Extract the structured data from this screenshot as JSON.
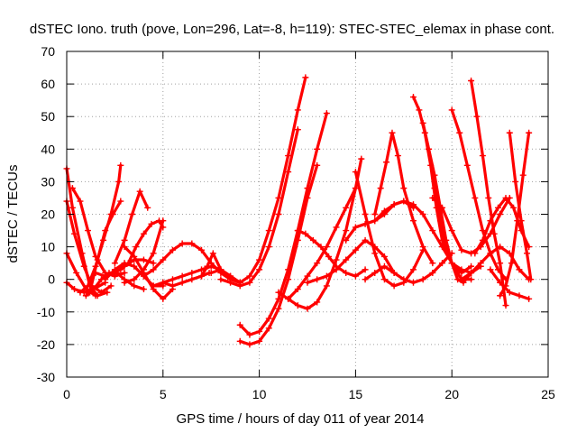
{
  "chart_data": {
    "type": "scatter",
    "title": "dSTEC Iono. truth (pove, Lon=296, Lat=-8, h=119): STEC-STEC_elemax in phase cont.",
    "xlabel": "GPS time / hours of day 011 of year 2014",
    "ylabel": "dSTEC  / TECUs",
    "xlim": [
      0,
      25
    ],
    "ylim": [
      -30,
      70
    ],
    "xticks": [
      "0",
      "5",
      "10",
      "15",
      "20",
      "25"
    ],
    "yticks": [
      "-30",
      "-20",
      "-10",
      "0",
      "10",
      "20",
      "30",
      "40",
      "50",
      "60",
      "70"
    ],
    "grid": true,
    "marker": "+",
    "color": "#ff0000",
    "series": [
      {
        "x": [
          0.0,
          0.3,
          0.8,
          1.2,
          1.6,
          2.1
        ],
        "y": [
          34,
          22,
          8,
          -2,
          -5,
          -4
        ]
      },
      {
        "x": [
          0.0,
          0.4,
          0.9,
          1.3,
          1.8,
          2.3
        ],
        "y": [
          24,
          14,
          4,
          -2,
          -4,
          -2
        ]
      },
      {
        "x": [
          0.0,
          0.5,
          1.0,
          1.5
        ],
        "y": [
          8,
          2,
          -3,
          -5
        ]
      },
      {
        "x": [
          0.0,
          0.4,
          0.9,
          1.4,
          2.0
        ],
        "y": [
          -1,
          -3,
          -4,
          -3,
          -1
        ]
      },
      {
        "x": [
          0.3,
          0.7,
          1.1,
          1.5,
          2.0,
          2.5,
          3.0
        ],
        "y": [
          28,
          24,
          15,
          7,
          2,
          1,
          2
        ]
      },
      {
        "x": [
          0.7,
          1.1,
          1.5,
          1.9,
          2.3,
          2.7,
          2.8
        ],
        "y": [
          -4,
          -2,
          4,
          12,
          20,
          30,
          35
        ]
      },
      {
        "x": [
          1.0,
          1.4,
          1.8,
          2.2,
          2.6,
          3.0,
          3.5,
          4.0
        ],
        "y": [
          -5,
          -3,
          0,
          2,
          2,
          0,
          -2,
          -3
        ]
      },
      {
        "x": [
          1.2,
          1.6,
          2.0,
          2.4,
          2.8
        ],
        "y": [
          -4,
          6,
          15,
          20,
          24
        ]
      },
      {
        "x": [
          1.5,
          2.0,
          2.5,
          3.0,
          3.5,
          4.0,
          4.5
        ],
        "y": [
          2,
          1,
          2,
          4,
          6,
          6,
          5
        ]
      },
      {
        "x": [
          2.0,
          2.5,
          3.0,
          3.5,
          4.0,
          4.5,
          5.0
        ],
        "y": [
          0,
          3,
          5,
          4,
          1,
          -2,
          -2
        ]
      },
      {
        "x": [
          2.5,
          3.0,
          3.4,
          3.8,
          4.2
        ],
        "y": [
          5,
          12,
          20,
          27,
          22
        ]
      },
      {
        "x": [
          2.8,
          3.2,
          3.6,
          4.0,
          4.4,
          4.8,
          5.0
        ],
        "y": [
          3,
          5,
          10,
          14,
          17,
          18,
          16
        ]
      },
      {
        "x": [
          3.0,
          3.5,
          4.0,
          4.5,
          5.0,
          5.5
        ],
        "y": [
          10,
          7,
          2,
          -3,
          -6,
          -3
        ]
      },
      {
        "x": [
          3.0,
          3.5,
          4.0,
          4.5,
          5.0
        ],
        "y": [
          -1,
          0,
          3,
          8,
          18
        ]
      },
      {
        "x": [
          4.0,
          4.5,
          5.0,
          5.5,
          6.0,
          6.5,
          7.0,
          7.5,
          8.0,
          8.5,
          9.0
        ],
        "y": [
          1,
          3,
          6,
          9,
          11,
          11,
          9,
          5,
          2,
          0,
          -1
        ]
      },
      {
        "x": [
          4.5,
          5.0,
          5.5,
          6.0,
          6.5,
          7.0,
          7.5,
          8.0,
          8.5,
          9.0
        ],
        "y": [
          -2,
          -1,
          0,
          1,
          2,
          3,
          4,
          3,
          1,
          -1
        ]
      },
      {
        "x": [
          5.0,
          5.5,
          6.0,
          6.5,
          7.0,
          7.4
        ],
        "y": [
          -1,
          -2,
          -1,
          0,
          1,
          2
        ]
      },
      {
        "x": [
          7.0,
          7.3,
          7.6,
          8.0,
          8.5
        ],
        "y": [
          1,
          4,
          8,
          3,
          0
        ]
      },
      {
        "x": [
          7.5,
          8.0,
          8.5,
          9.0,
          9.5,
          10.0,
          10.5,
          11.0,
          11.5,
          12.0,
          12.4
        ],
        "y": [
          2,
          3,
          1,
          -1,
          1,
          6,
          15,
          25,
          38,
          52,
          62
        ]
      },
      {
        "x": [
          8.0,
          8.5,
          9.0,
          9.5,
          10.0,
          10.5,
          11.0,
          11.5,
          12.0
        ],
        "y": [
          0,
          -1,
          -2,
          -1,
          3,
          10,
          20,
          33,
          46
        ]
      },
      {
        "x": [
          9.0,
          9.5,
          10.0,
          10.5,
          11.0,
          11.5,
          12.0,
          12.5,
          13.0,
          13.5
        ],
        "y": [
          -14,
          -17,
          -16,
          -12,
          -6,
          3,
          15,
          28,
          40,
          51
        ]
      },
      {
        "x": [
          9.0,
          9.5,
          10.0,
          10.5,
          11.0,
          11.5,
          12.0,
          12.5,
          13.0
        ],
        "y": [
          -19,
          -20,
          -19,
          -15,
          -9,
          0,
          12,
          25,
          35
        ]
      },
      {
        "x": [
          11.0,
          11.5,
          12.0,
          12.5,
          13.0,
          13.5,
          14.0,
          14.5,
          15.0
        ],
        "y": [
          -4,
          -6,
          -8,
          -9,
          -7,
          -2,
          6,
          15,
          28
        ]
      },
      {
        "x": [
          12.0,
          12.4,
          12.8,
          13.2,
          13.6,
          14.0,
          14.5,
          15.0,
          15.5
        ],
        "y": [
          15,
          14,
          12,
          10,
          7,
          4,
          2,
          1,
          3
        ]
      },
      {
        "x": [
          11.5,
          12.0,
          12.5,
          13.0,
          13.5,
          14.0,
          14.5,
          15.0,
          15.3
        ],
        "y": [
          -6,
          -3,
          1,
          5,
          10,
          16,
          22,
          28,
          37
        ]
      },
      {
        "x": [
          12.5,
          13.0,
          13.5,
          14.0,
          14.5,
          15.0,
          15.5,
          16.0,
          16.5,
          17.0
        ],
        "y": [
          -1,
          0,
          1,
          3,
          6,
          9,
          12,
          10,
          7,
          2
        ]
      },
      {
        "x": [
          14.5,
          15.0,
          15.5,
          16.0,
          16.5,
          17.0,
          17.5,
          18.0
        ],
        "y": [
          12,
          16,
          17,
          18,
          20,
          23,
          24,
          22
        ]
      },
      {
        "x": [
          15.0,
          15.5,
          16.0,
          16.5,
          17.0,
          17.5,
          18.0,
          18.5
        ],
        "y": [
          33,
          20,
          8,
          0,
          -2,
          -1,
          3,
          9
        ]
      },
      {
        "x": [
          15.5,
          16.0,
          16.5,
          17.0,
          17.5,
          18.0,
          18.5,
          19.0,
          19.5,
          20.0
        ],
        "y": [
          0,
          2,
          4,
          2,
          0,
          -1,
          0,
          2,
          5,
          8
        ]
      },
      {
        "x": [
          16.0,
          16.5,
          17.0,
          17.5,
          18.0,
          18.5,
          19.0,
          19.5,
          20.0,
          20.5,
          21.0,
          21.5
        ],
        "y": [
          18,
          21,
          23,
          24,
          23,
          20,
          15,
          10,
          5,
          3,
          2,
          4
        ]
      },
      {
        "x": [
          16.0,
          16.3,
          16.6,
          16.9,
          17.2,
          17.5,
          18.0,
          18.5,
          19.0
        ],
        "y": [
          20,
          28,
          36,
          45,
          38,
          28,
          18,
          10,
          5
        ]
      },
      {
        "x": [
          18.0,
          18.3,
          18.6,
          18.9,
          19.2,
          19.5,
          20.0,
          20.5,
          21.0
        ],
        "y": [
          56,
          52,
          45,
          35,
          22,
          12,
          5,
          2,
          4
        ]
      },
      {
        "x": [
          18.5,
          18.8,
          19.1,
          19.4,
          19.7,
          20.0,
          20.5,
          21.0
        ],
        "y": [
          48,
          40,
          28,
          18,
          10,
          5,
          0,
          0
        ]
      },
      {
        "x": [
          18.8,
          19.1,
          19.4,
          19.7,
          20.0,
          20.3,
          20.6,
          21.0
        ],
        "y": [
          40,
          32,
          22,
          12,
          5,
          0,
          -1,
          2
        ]
      },
      {
        "x": [
          19.0,
          19.5,
          20.0,
          20.5,
          21.0,
          21.5,
          22.0,
          22.5,
          23.0
        ],
        "y": [
          25,
          22,
          15,
          9,
          8,
          10,
          14,
          20,
          25
        ]
      },
      {
        "x": [
          20.0,
          20.4,
          20.8,
          21.2,
          21.6,
          22.0,
          22.4,
          22.8
        ],
        "y": [
          52,
          45,
          35,
          25,
          15,
          8,
          3,
          0
        ]
      },
      {
        "x": [
          21.0,
          21.3,
          21.6,
          21.9,
          22.2,
          22.5,
          22.8
        ],
        "y": [
          61,
          50,
          38,
          25,
          14,
          5,
          -8
        ]
      },
      {
        "x": [
          21.2,
          21.6,
          22.0,
          22.4,
          22.8,
          23.2,
          23.6,
          24.0
        ],
        "y": [
          8,
          12,
          18,
          22,
          25,
          22,
          15,
          10
        ]
      },
      {
        "x": [
          20.5,
          21.0,
          21.5,
          22.0,
          22.5,
          23.0,
          23.5,
          24.0
        ],
        "y": [
          0,
          2,
          5,
          8,
          10,
          8,
          3,
          0
        ]
      },
      {
        "x": [
          22.5,
          22.8,
          23.1,
          23.4,
          23.7,
          24.0
        ],
        "y": [
          -5,
          -2,
          5,
          18,
          32,
          45
        ]
      },
      {
        "x": [
          23.0,
          23.3,
          23.6,
          23.9,
          24.1
        ],
        "y": [
          45,
          30,
          18,
          8,
          0
        ]
      },
      {
        "x": [
          22.0,
          22.5,
          23.0,
          23.5,
          24.0
        ],
        "y": [
          3,
          -1,
          -4,
          -5,
          -6
        ]
      }
    ]
  }
}
